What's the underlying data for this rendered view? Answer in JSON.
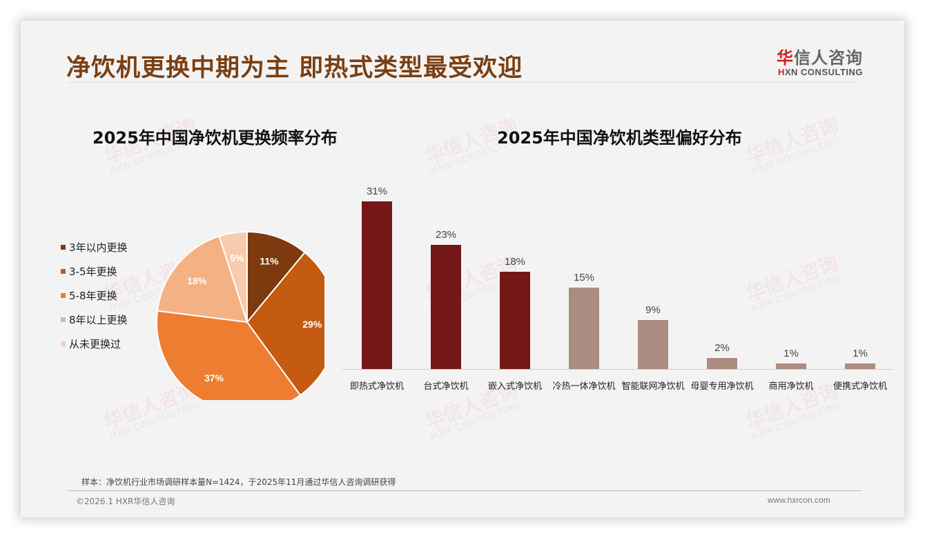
{
  "header": {
    "title": "净饮机更换中期为主 即热式类型最受欢迎",
    "logo_cn_first": "华",
    "logo_cn_rest": "信人咨询",
    "logo_en_first": "H",
    "logo_en_rest": "XN CONSULTING"
  },
  "watermark": {
    "cn": "华信人咨询",
    "en": "HXN CONSULTING"
  },
  "colors": {
    "title": "#7a3f12",
    "bar_dark": "#731816",
    "bar_light": "#ab8c80",
    "pie": [
      "#7d3a0e",
      "#c55a11",
      "#ed7d31",
      "#f4b183",
      "#f8cbad"
    ]
  },
  "chart_data": [
    {
      "type": "pie",
      "title": "2025年中国净饮机更换频率分布",
      "categories": [
        "3年以内更换",
        "3-5年更换",
        "5-8年更换",
        "8年以上更换",
        "从未更换过"
      ],
      "values": [
        11,
        29,
        37,
        18,
        5
      ],
      "labels": [
        "11%",
        "29%",
        "37%",
        "18%",
        "5%"
      ],
      "legend_position": "left",
      "start_angle": "12 o'clock, clockwise"
    },
    {
      "type": "bar",
      "title": "2025年中国净饮机类型偏好分布",
      "categories": [
        "即热式净饮机",
        "台式净饮机",
        "嵌入式净饮机",
        "冷热一体净饮机",
        "智能联网净饮机",
        "母婴专用净饮机",
        "商用净饮机",
        "便携式净饮机"
      ],
      "values": [
        31,
        23,
        18,
        15,
        9,
        2,
        1,
        1
      ],
      "labels": [
        "31%",
        "23%",
        "18%",
        "15%",
        "9%",
        "2%",
        "1%",
        "1%"
      ],
      "highlight_top_n": 3,
      "xlabel": "",
      "ylabel": "",
      "grid": false,
      "y_axis_visible": false
    }
  ],
  "footer": {
    "note": "样本：净饮机行业市场调研样本量N=1424，于2025年11月通过华信人咨询调研获得",
    "copyright": "©2026.1 HXR华信人咨询",
    "website": "www.hxrcon.com"
  }
}
